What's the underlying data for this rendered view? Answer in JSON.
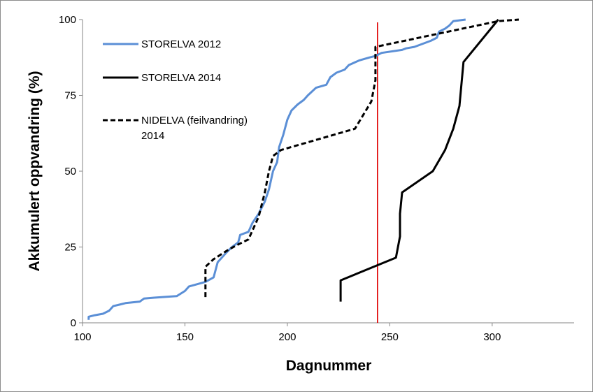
{
  "chart_data": {
    "type": "line",
    "xlabel": "Dagnummer",
    "ylabel": "Akkumulert oppvandring (%)",
    "xlim": [
      100,
      340
    ],
    "ylim": [
      0,
      100
    ],
    "x_ticks": [
      "100",
      "150",
      "200",
      "250",
      "300"
    ],
    "y_ticks": [
      "0",
      "25",
      "50",
      "75",
      "100"
    ],
    "grid": false,
    "legend_position": "top-left",
    "series": [
      {
        "name": "STORELVA 2012",
        "color": "#5B8FD6",
        "style": "solid",
        "points": [
          [
            103,
            1
          ],
          [
            103,
            2
          ],
          [
            106,
            2.5
          ],
          [
            110,
            3
          ],
          [
            113,
            4
          ],
          [
            115,
            5.5
          ],
          [
            118,
            6
          ],
          [
            121,
            6.5
          ],
          [
            128,
            7
          ],
          [
            130,
            8
          ],
          [
            135,
            8.3
          ],
          [
            146,
            8.8
          ],
          [
            150,
            10.5
          ],
          [
            152,
            12
          ],
          [
            160,
            13.5
          ],
          [
            164,
            15
          ],
          [
            166,
            20
          ],
          [
            170,
            23
          ],
          [
            173,
            25
          ],
          [
            176,
            26.5
          ],
          [
            177,
            29
          ],
          [
            181,
            30
          ],
          [
            183,
            33
          ],
          [
            186,
            36
          ],
          [
            189,
            40
          ],
          [
            191,
            44
          ],
          [
            193,
            50
          ],
          [
            195,
            53
          ],
          [
            196,
            58
          ],
          [
            198,
            62
          ],
          [
            200,
            67
          ],
          [
            202,
            70
          ],
          [
            205,
            72
          ],
          [
            208,
            73.5
          ],
          [
            210,
            75
          ],
          [
            214,
            77.5
          ],
          [
            219,
            78.5
          ],
          [
            221,
            81
          ],
          [
            224,
            82.5
          ],
          [
            228,
            83.5
          ],
          [
            230,
            85
          ],
          [
            235,
            86.5
          ],
          [
            240,
            87.5
          ],
          [
            243,
            88
          ],
          [
            246,
            89
          ],
          [
            256,
            90
          ],
          [
            258,
            90.5
          ],
          [
            262,
            91
          ],
          [
            270,
            93
          ],
          [
            273,
            94
          ],
          [
            274,
            96
          ],
          [
            277,
            97
          ],
          [
            279,
            98
          ],
          [
            281,
            99.5
          ],
          [
            287,
            100
          ]
        ]
      },
      {
        "name": "STORELVA 2014",
        "color": "#000000",
        "style": "solid",
        "points": [
          [
            226,
            7
          ],
          [
            226,
            14
          ],
          [
            253,
            21.5
          ],
          [
            255,
            28.5
          ],
          [
            255,
            36
          ],
          [
            256,
            43
          ],
          [
            271,
            50
          ],
          [
            277,
            57
          ],
          [
            281,
            64
          ],
          [
            284,
            71.5
          ],
          [
            286,
            86
          ],
          [
            303,
            100
          ]
        ]
      },
      {
        "name": "NIDELVA (feilvandring)",
        "name_line2": "2014",
        "color": "#000000",
        "style": "dashed",
        "points": [
          [
            160,
            8.5
          ],
          [
            160,
            18.5
          ],
          [
            164,
            21
          ],
          [
            171,
            24
          ],
          [
            175,
            25.5
          ],
          [
            181,
            27.5
          ],
          [
            186,
            35
          ],
          [
            189,
            43
          ],
          [
            191,
            50
          ],
          [
            193,
            55
          ],
          [
            197,
            57
          ],
          [
            233,
            64
          ],
          [
            241,
            73
          ],
          [
            243,
            80
          ],
          [
            243,
            88
          ],
          [
            243,
            91
          ],
          [
            303,
            99.5
          ],
          [
            313,
            100
          ]
        ]
      }
    ],
    "reference_line": {
      "orientation": "vertical",
      "x": 244,
      "color": "#E00000"
    }
  }
}
